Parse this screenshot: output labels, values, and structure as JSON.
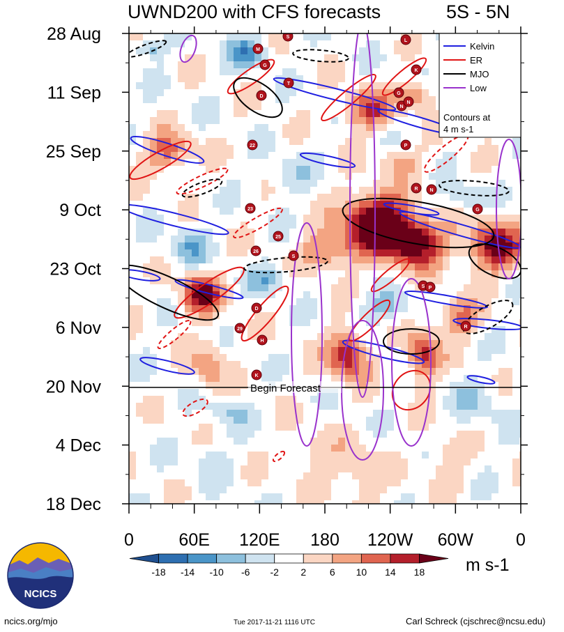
{
  "header": {
    "title": "UWND200 with CFS forecasts",
    "region": "5S - 5N"
  },
  "chart_data": {
    "type": "heatmap",
    "title": "UWND200 with CFS forecasts",
    "subtitle": "5S - 5N",
    "x_tick_labels": [
      "0",
      "60E",
      "120E",
      "180",
      "120W",
      "60W",
      "0"
    ],
    "x_range_deg_east": [
      0,
      360
    ],
    "y_tick_labels": [
      "28 Aug",
      "11 Sep",
      "25 Sep",
      "9 Oct",
      "23 Oct",
      "6 Nov",
      "20 Nov",
      "4 Dec",
      "18 Dec"
    ],
    "y_axis_direction": "time increases downward",
    "forecast_start": "20 Nov",
    "forecast_label": "Begin Forecast",
    "colorbar": {
      "levels": [
        -18,
        -14,
        -10,
        -6,
        -2,
        2,
        6,
        10,
        14,
        18
      ],
      "units": "m s-1",
      "colors": [
        "#1f4f8f",
        "#2e6fb1",
        "#4a95c8",
        "#8dc0dd",
        "#cfe3f0",
        "#ffffff",
        "#fbd6c3",
        "#f3a482",
        "#e06550",
        "#b41f2b",
        "#6a0018"
      ]
    },
    "legend": {
      "placement": "top-right",
      "entries": [
        {
          "label": "Kelvin",
          "color": "#1f1fe0"
        },
        {
          "label": "ER",
          "color": "#e01414"
        },
        {
          "label": "MJO",
          "color": "#000000"
        },
        {
          "label": "Low",
          "color": "#9932cc"
        }
      ],
      "note": "Contours at 4 m s-1"
    },
    "storm_markers": [
      "S",
      "M",
      "G",
      "L",
      "K",
      "T",
      "D",
      "G",
      "N",
      "N",
      "22",
      "P",
      "R",
      "N",
      "G",
      "23",
      "26",
      "25",
      "S",
      "S",
      "P",
      "D",
      "29",
      "H",
      "R",
      "K"
    ]
  },
  "footer": {
    "left": "ncics.org/mjo",
    "middle": "Tue 2017-11-21 1116 UTC",
    "right": "Carl Schreck (cjschrec@ncsu.edu)"
  },
  "logo": {
    "text": "NCICS"
  }
}
